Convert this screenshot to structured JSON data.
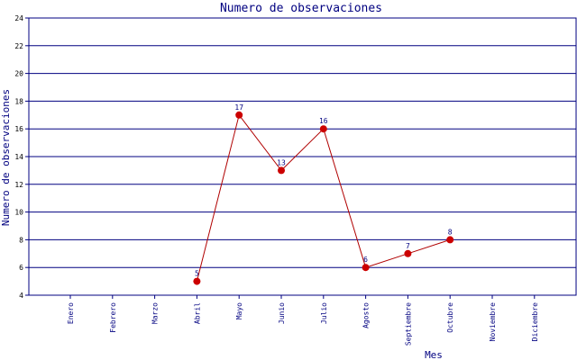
{
  "chart_data": {
    "type": "line",
    "title": "Numero de observaciones",
    "xlabel": "Mes",
    "ylabel": "Numero de observaciones",
    "ylim": [
      4,
      24
    ],
    "yticks": [
      4,
      6,
      8,
      10,
      12,
      14,
      16,
      18,
      20,
      22,
      24
    ],
    "categories": [
      "Enero",
      "Febrero",
      "Marzo",
      "Abril",
      "Mayo",
      "Junio",
      "Julio",
      "Agosto",
      "Septiembre",
      "Octubre",
      "Noviembre",
      "Diciembre"
    ],
    "values": [
      null,
      null,
      null,
      5,
      17,
      13,
      16,
      6,
      7,
      8,
      null,
      null
    ],
    "grid": true,
    "colors": {
      "line": "#b00000",
      "marker": "#cc0000",
      "grid": "#000080",
      "text": "#000080"
    }
  }
}
